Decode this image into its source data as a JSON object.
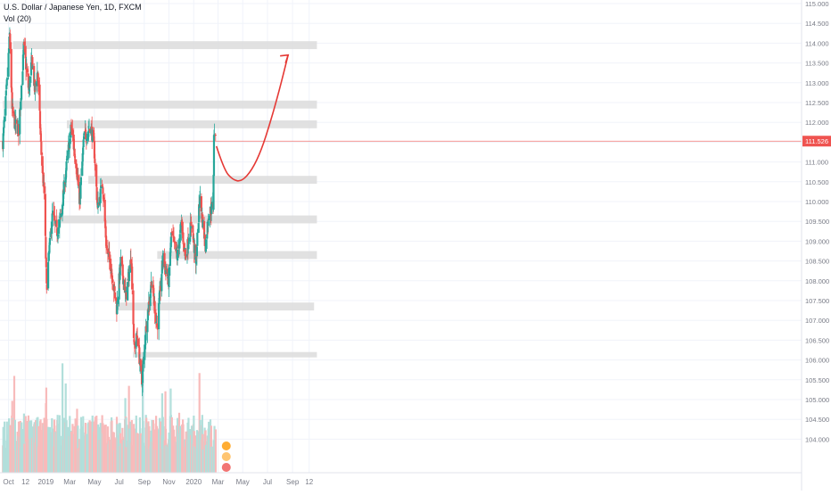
{
  "header": {
    "symbol": "U.S. Dollar / Japanese Yen, 1D, FXCM",
    "volume_label": "Vol (20)"
  },
  "colors": {
    "up": "#26a69a",
    "down": "#ef5350",
    "vol_up": "#b2dfdb",
    "vol_down": "#f8bbbb",
    "zone": "#dcdcdc",
    "price_line": "#ef5350",
    "projection": "#e53935",
    "grid": "#f0f3fa",
    "axis_text": "#787b86"
  },
  "chart_data": {
    "type": "candlestick",
    "current_price": 111.526,
    "current_price_label": "111.526",
    "y_range": [
      103.7,
      115.2
    ],
    "y_ticks": [
      "104.000",
      "104.500",
      "105.000",
      "105.500",
      "106.000",
      "106.500",
      "107.000",
      "107.500",
      "108.000",
      "108.500",
      "109.000",
      "109.500",
      "110.000",
      "110.500",
      "111.000",
      "111.500",
      "112.000",
      "112.500",
      "113.000",
      "113.500",
      "114.000",
      "114.500",
      "115.000"
    ],
    "x_ticks": [
      {
        "label": "Oct",
        "date": "2018-10-01"
      },
      {
        "label": "12",
        "date": "2018-11-12"
      },
      {
        "label": "2019",
        "date": "2019-01-01"
      },
      {
        "label": "Mar",
        "date": "2019-03-01"
      },
      {
        "label": "May",
        "date": "2019-05-01"
      },
      {
        "label": "Jul",
        "date": "2019-07-01"
      },
      {
        "label": "Sep",
        "date": "2019-09-01"
      },
      {
        "label": "Nov",
        "date": "2019-11-01"
      },
      {
        "label": "2020",
        "date": "2020-01-01"
      },
      {
        "label": "Mar",
        "date": "2020-03-01"
      },
      {
        "label": "May",
        "date": "2020-05-01"
      },
      {
        "label": "Jul",
        "date": "2020-07-01"
      },
      {
        "label": "Sep",
        "date": "2020-09-01"
      },
      {
        "label": "12",
        "date": "2020-10-12"
      }
    ],
    "price_path": [
      [
        "2018-09-17",
        111.5
      ],
      [
        "2018-09-26",
        112.8
      ],
      [
        "2018-10-04",
        114.2
      ],
      [
        "2018-10-10",
        112.3
      ],
      [
        "2018-10-16",
        112.0
      ],
      [
        "2018-10-26",
        111.8
      ],
      [
        "2018-11-08",
        113.9
      ],
      [
        "2018-11-20",
        112.8
      ],
      [
        "2018-11-28",
        113.6
      ],
      [
        "2018-12-05",
        112.8
      ],
      [
        "2018-12-12",
        113.3
      ],
      [
        "2018-12-21",
        111.2
      ],
      [
        "2018-12-28",
        110.2
      ],
      [
        "2019-01-03",
        107.8
      ],
      [
        "2019-01-09",
        108.7
      ],
      [
        "2019-01-18",
        109.7
      ],
      [
        "2019-01-28",
        109.2
      ],
      [
        "2019-02-07",
        109.6
      ],
      [
        "2019-02-20",
        110.8
      ],
      [
        "2019-03-05",
        111.9
      ],
      [
        "2019-03-12",
        111.3
      ],
      [
        "2019-03-21",
        110.6
      ],
      [
        "2019-03-25",
        109.9
      ],
      [
        "2019-04-05",
        111.6
      ],
      [
        "2019-04-22",
        111.9
      ],
      [
        "2019-04-30",
        111.4
      ],
      [
        "2019-05-09",
        109.8
      ],
      [
        "2019-05-21",
        110.5
      ],
      [
        "2019-05-31",
        108.8
      ],
      [
        "2019-06-10",
        108.4
      ],
      [
        "2019-06-25",
        107.3
      ],
      [
        "2019-07-05",
        108.5
      ],
      [
        "2019-07-18",
        107.6
      ],
      [
        "2019-07-31",
        108.6
      ],
      [
        "2019-08-07",
        106.3
      ],
      [
        "2019-08-15",
        106.6
      ],
      [
        "2019-08-26",
        105.4
      ],
      [
        "2019-09-06",
        106.9
      ],
      [
        "2019-09-19",
        108.0
      ],
      [
        "2019-10-03",
        106.8
      ],
      [
        "2019-10-17",
        108.6
      ],
      [
        "2019-10-31",
        108.0
      ],
      [
        "2019-11-07",
        109.2
      ],
      [
        "2019-11-21",
        108.6
      ],
      [
        "2019-12-02",
        109.4
      ],
      [
        "2019-12-12",
        108.6
      ],
      [
        "2019-12-27",
        109.5
      ],
      [
        "2020-01-06",
        108.4
      ],
      [
        "2020-01-16",
        110.1
      ],
      [
        "2020-01-30",
        108.9
      ],
      [
        "2020-02-07",
        109.7
      ],
      [
        "2020-02-13",
        109.8
      ],
      [
        "2020-02-18",
        109.9
      ],
      [
        "2020-02-20",
        111.6
      ],
      [
        "2020-02-21",
        111.8
      ],
      [
        "2020-02-24",
        111.5
      ]
    ],
    "zones": [
      {
        "from": "2018-10-12",
        "to": "2020-10-31",
        "y0": 113.85,
        "y1": 114.05
      },
      {
        "from": "2018-09-17",
        "to": "2020-10-31",
        "y0": 112.35,
        "y1": 112.55
      },
      {
        "from": "2019-02-22",
        "to": "2020-10-31",
        "y0": 111.85,
        "y1": 112.05
      },
      {
        "from": "2019-04-16",
        "to": "2020-10-31",
        "y0": 110.45,
        "y1": 110.65
      },
      {
        "from": "2019-01-21",
        "to": "2020-10-31",
        "y0": 109.45,
        "y1": 109.65
      },
      {
        "from": "2019-10-03",
        "to": "2020-10-31",
        "y0": 108.55,
        "y1": 108.75
      },
      {
        "from": "2019-06-26",
        "to": "2020-10-24",
        "y0": 107.25,
        "y1": 107.45
      },
      {
        "from": "2019-08-04",
        "to": "2020-10-31",
        "y0": 106.1,
        "y1": 106.2
      }
    ],
    "projection": [
      [
        "2020-02-26",
        111.4
      ],
      [
        "2020-03-16",
        110.8
      ],
      [
        "2020-04-06",
        110.55
      ],
      [
        "2020-04-28",
        110.5
      ],
      [
        "2020-05-24",
        110.8
      ],
      [
        "2020-06-16",
        111.3
      ],
      [
        "2020-07-08",
        112.0
      ],
      [
        "2020-07-30",
        112.8
      ],
      [
        "2020-08-21",
        113.7
      ]
    ]
  }
}
